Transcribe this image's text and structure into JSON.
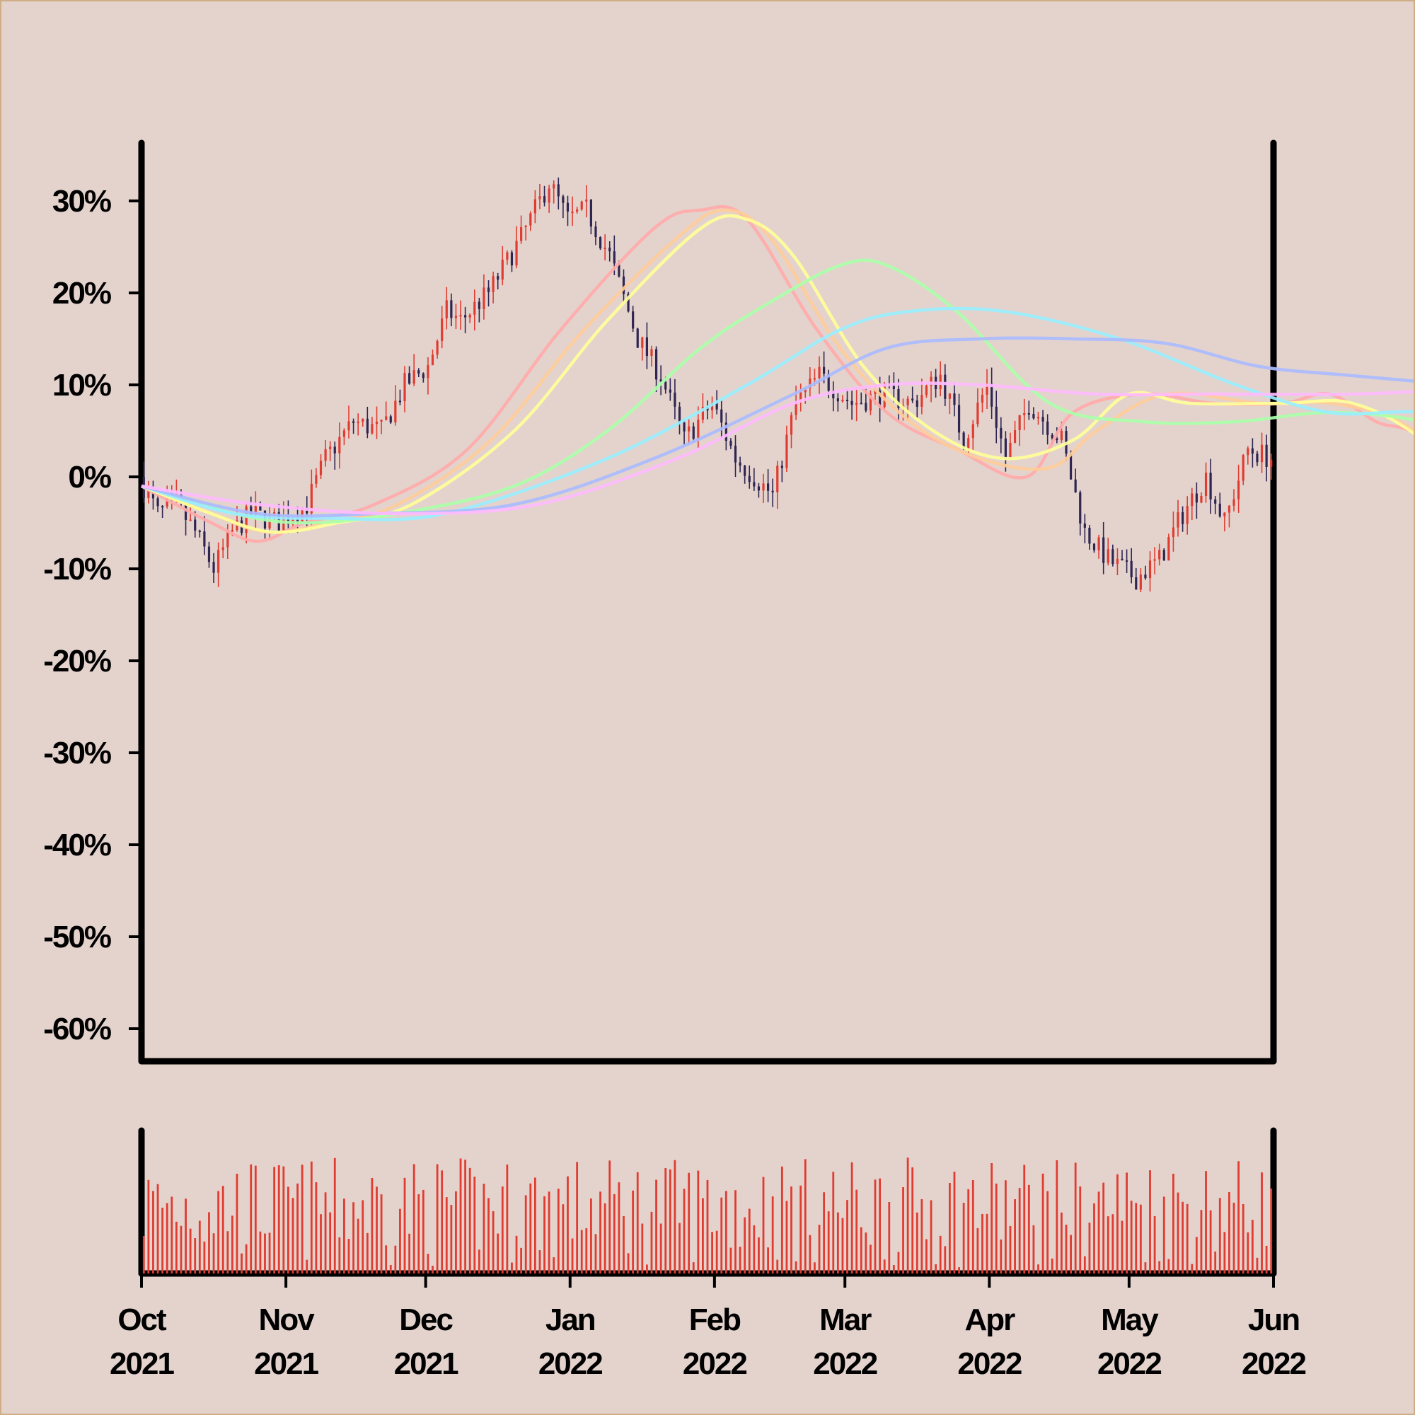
{
  "chart_data": {
    "type": "candlestick",
    "title": "",
    "xlabel": "",
    "ylabel": "",
    "ylim": [
      -64,
      36
    ],
    "xlim": [
      "2021-10-01",
      "2022-06-01"
    ],
    "yticks": [
      {
        "value": 30,
        "label": "30%"
      },
      {
        "value": 20,
        "label": "20%"
      },
      {
        "value": 10,
        "label": "10%"
      },
      {
        "value": 0,
        "label": "0%"
      },
      {
        "value": -10,
        "label": "-10%"
      },
      {
        "value": -20,
        "label": "-20%"
      },
      {
        "value": -30,
        "label": "-30%"
      },
      {
        "value": -40,
        "label": "-40%"
      },
      {
        "value": -50,
        "label": "-50%"
      },
      {
        "value": -60,
        "label": "-60%"
      }
    ],
    "xticks": [
      {
        "date": "2021-10-01",
        "month": "Oct",
        "year": "2021"
      },
      {
        "date": "2021-11-01",
        "month": "Nov",
        "year": "2021"
      },
      {
        "date": "2021-12-01",
        "month": "Dec",
        "year": "2021"
      },
      {
        "date": "2022-01-01",
        "month": "Jan",
        "year": "2022"
      },
      {
        "date": "2022-02-01",
        "month": "Feb",
        "year": "2022"
      },
      {
        "date": "2022-03-01",
        "month": "Mar",
        "year": "2022"
      },
      {
        "date": "2022-04-01",
        "month": "Apr",
        "year": "2022"
      },
      {
        "date": "2022-05-01",
        "month": "May",
        "year": "2022"
      },
      {
        "date": "2022-06-01",
        "month": "Jun",
        "year": "2022"
      }
    ],
    "price_path": [
      {
        "date": "2021-10-01",
        "value": 0
      },
      {
        "date": "2021-10-05",
        "value": -4
      },
      {
        "date": "2021-10-09",
        "value": -3
      },
      {
        "date": "2021-10-13",
        "value": -6
      },
      {
        "date": "2021-10-17",
        "value": -10
      },
      {
        "date": "2021-10-21",
        "value": -6
      },
      {
        "date": "2021-10-25",
        "value": -4
      },
      {
        "date": "2021-10-31",
        "value": -5
      },
      {
        "date": "2021-11-06",
        "value": -3
      },
      {
        "date": "2021-11-10",
        "value": 2
      },
      {
        "date": "2021-11-16",
        "value": 6
      },
      {
        "date": "2021-11-22",
        "value": 5
      },
      {
        "date": "2021-11-27",
        "value": 10
      },
      {
        "date": "2021-12-02",
        "value": 12
      },
      {
        "date": "2021-12-06",
        "value": 18
      },
      {
        "date": "2021-12-09",
        "value": 17
      },
      {
        "date": "2021-12-15",
        "value": 20
      },
      {
        "date": "2021-12-22",
        "value": 26
      },
      {
        "date": "2021-12-28",
        "value": 32
      },
      {
        "date": "2022-01-01",
        "value": 28
      },
      {
        "date": "2022-01-05",
        "value": 29
      },
      {
        "date": "2022-01-10",
        "value": 24
      },
      {
        "date": "2022-01-16",
        "value": 15
      },
      {
        "date": "2022-01-21",
        "value": 11
      },
      {
        "date": "2022-01-26",
        "value": 4
      },
      {
        "date": "2022-02-01",
        "value": 8
      },
      {
        "date": "2022-02-06",
        "value": 2
      },
      {
        "date": "2022-02-14",
        "value": -2
      },
      {
        "date": "2022-02-19",
        "value": 8
      },
      {
        "date": "2022-02-24",
        "value": 11
      },
      {
        "date": "2022-03-03",
        "value": 8
      },
      {
        "date": "2022-03-10",
        "value": 9
      },
      {
        "date": "2022-03-16",
        "value": 8
      },
      {
        "date": "2022-03-22",
        "value": 11
      },
      {
        "date": "2022-03-27",
        "value": 4
      },
      {
        "date": "2022-04-01",
        "value": 10
      },
      {
        "date": "2022-04-05",
        "value": 2
      },
      {
        "date": "2022-04-10",
        "value": 8
      },
      {
        "date": "2022-04-17",
        "value": 4
      },
      {
        "date": "2022-04-22",
        "value": -6
      },
      {
        "date": "2022-04-27",
        "value": -9
      },
      {
        "date": "2022-05-03",
        "value": -11
      },
      {
        "date": "2022-05-08",
        "value": -9
      },
      {
        "date": "2022-05-13",
        "value": -4
      },
      {
        "date": "2022-05-18",
        "value": 0
      },
      {
        "date": "2022-05-22",
        "value": -5
      },
      {
        "date": "2022-05-27",
        "value": 3
      },
      {
        "date": "2022-06-01",
        "value": 2
      }
    ],
    "series": [
      {
        "color": "#ffaaaa",
        "values": [
          [
            0,
            -1
          ],
          [
            15,
            -5
          ],
          [
            25,
            -7
          ],
          [
            35,
            -5
          ],
          [
            50,
            -3
          ],
          [
            70,
            3
          ],
          [
            90,
            16
          ],
          [
            110,
            27
          ],
          [
            120,
            29
          ],
          [
            130,
            28
          ],
          [
            145,
            16
          ],
          [
            160,
            7
          ],
          [
            175,
            3
          ],
          [
            190,
            0
          ],
          [
            200,
            7
          ],
          [
            215,
            9
          ],
          [
            230,
            8
          ],
          [
            245,
            8
          ],
          [
            255,
            9
          ],
          [
            265,
            6
          ],
          [
            275,
            4
          ],
          [
            290,
            -6
          ],
          [
            305,
            -8
          ],
          [
            315,
            -6
          ],
          [
            335,
            -3
          ],
          [
            345,
            0
          ],
          [
            348,
            1
          ]
        ]
      },
      {
        "color": "#ffcc99",
        "values": [
          [
            0,
            -1
          ],
          [
            15,
            -4
          ],
          [
            27,
            -6
          ],
          [
            40,
            -5
          ],
          [
            55,
            -3
          ],
          [
            75,
            4
          ],
          [
            95,
            16
          ],
          [
            115,
            26
          ],
          [
            125,
            29
          ],
          [
            135,
            26
          ],
          [
            150,
            14
          ],
          [
            165,
            6
          ],
          [
            180,
            2
          ],
          [
            195,
            1
          ],
          [
            205,
            5
          ],
          [
            220,
            9
          ],
          [
            240,
            8
          ],
          [
            255,
            8
          ],
          [
            270,
            6
          ],
          [
            285,
            0
          ],
          [
            300,
            -7
          ],
          [
            310,
            -7
          ],
          [
            325,
            -5
          ],
          [
            340,
            -2
          ],
          [
            348,
            0
          ]
        ]
      },
      {
        "color": "#ffff99",
        "values": [
          [
            0,
            -1
          ],
          [
            15,
            -4
          ],
          [
            28,
            -6
          ],
          [
            42,
            -5
          ],
          [
            58,
            -3
          ],
          [
            80,
            5
          ],
          [
            100,
            17
          ],
          [
            120,
            27
          ],
          [
            130,
            28
          ],
          [
            140,
            24
          ],
          [
            155,
            12
          ],
          [
            170,
            5
          ],
          [
            185,
            2
          ],
          [
            200,
            4
          ],
          [
            212,
            9
          ],
          [
            225,
            8
          ],
          [
            245,
            8
          ],
          [
            260,
            8
          ],
          [
            275,
            4
          ],
          [
            290,
            -4
          ],
          [
            305,
            -7
          ],
          [
            315,
            -6
          ],
          [
            330,
            -4
          ],
          [
            342,
            -2
          ],
          [
            348,
            0
          ]
        ]
      },
      {
        "color": "#aaffaa",
        "values": [
          [
            0,
            -1
          ],
          [
            20,
            -4
          ],
          [
            35,
            -5
          ],
          [
            55,
            -4
          ],
          [
            80,
            -1
          ],
          [
            100,
            5
          ],
          [
            120,
            14
          ],
          [
            135,
            19
          ],
          [
            150,
            23
          ],
          [
            160,
            23
          ],
          [
            175,
            18
          ],
          [
            195,
            8
          ],
          [
            215,
            6
          ],
          [
            235,
            6
          ],
          [
            255,
            7
          ],
          [
            275,
            6
          ],
          [
            290,
            3
          ],
          [
            310,
            -2
          ],
          [
            330,
            -3
          ],
          [
            348,
            -4
          ]
        ]
      },
      {
        "color": "#99eeff",
        "values": [
          [
            0,
            -1
          ],
          [
            20,
            -4
          ],
          [
            40,
            -4.5
          ],
          [
            65,
            -4
          ],
          [
            100,
            2
          ],
          [
            130,
            10
          ],
          [
            150,
            16
          ],
          [
            165,
            18
          ],
          [
            185,
            18
          ],
          [
            210,
            15
          ],
          [
            235,
            10
          ],
          [
            255,
            7
          ],
          [
            275,
            7
          ],
          [
            295,
            5
          ],
          [
            320,
            3
          ],
          [
            340,
            0
          ],
          [
            348,
            -1
          ]
        ]
      },
      {
        "color": "#aabbff",
        "values": [
          [
            0,
            -1
          ],
          [
            25,
            -4
          ],
          [
            50,
            -4
          ],
          [
            80,
            -3
          ],
          [
            110,
            2
          ],
          [
            140,
            9
          ],
          [
            160,
            14
          ],
          [
            180,
            15
          ],
          [
            200,
            15
          ],
          [
            220,
            14.5
          ],
          [
            240,
            12
          ],
          [
            260,
            11
          ],
          [
            280,
            10
          ],
          [
            300,
            8
          ],
          [
            320,
            5
          ],
          [
            340,
            3
          ],
          [
            348,
            2
          ]
        ]
      },
      {
        "color": "#ffbbff",
        "values": [
          [
            0,
            -1
          ],
          [
            25,
            -3
          ],
          [
            55,
            -4
          ],
          [
            85,
            -3
          ],
          [
            115,
            2
          ],
          [
            140,
            8
          ],
          [
            160,
            10
          ],
          [
            180,
            10
          ],
          [
            205,
            9
          ],
          [
            230,
            9
          ],
          [
            260,
            9
          ],
          [
            285,
            9.5
          ],
          [
            310,
            9.5
          ],
          [
            335,
            9
          ],
          [
            348,
            8.5
          ]
        ]
      }
    ]
  }
}
